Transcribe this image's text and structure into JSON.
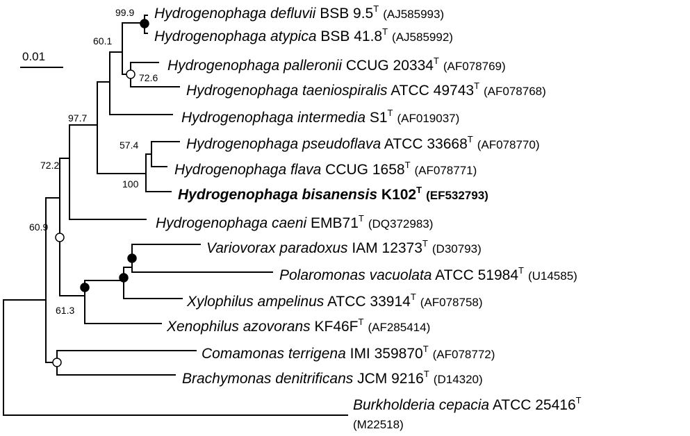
{
  "colors": {
    "line": "#000000",
    "node_filled": "#000000",
    "node_open": "#ffffff"
  },
  "scale_bar": {
    "label": "0.01"
  },
  "taxa": [
    {
      "genus_species": "Hydrogenophaga defluvii",
      "strain": "BSB 9.5",
      "type": "T",
      "accession": "(AJ585993)"
    },
    {
      "genus_species": "Hydrogenophaga atypica",
      "strain": "BSB 41.8",
      "type": "T",
      "accession": "(AJ585992)"
    },
    {
      "genus_species": "Hydrogenophaga palleronii",
      "strain": "CCUG 20334",
      "type": "T",
      "accession": "(AF078769)"
    },
    {
      "genus_species": "Hydrogenophaga taeniospiralis",
      "strain": "ATCC 49743",
      "type": "T",
      "accession": "(AF078768)"
    },
    {
      "genus_species": "Hydrogenophaga intermedia",
      "strain": "S1",
      "type": "T",
      "accession": "(AF019037)"
    },
    {
      "genus_species": "Hydrogenophaga pseudoflava",
      "strain": "ATCC 33668",
      "type": "T",
      "accession": "(AF078770)"
    },
    {
      "genus_species": "Hydrogenophaga flava",
      "strain": "CCUG 1658",
      "type": "T",
      "accession": "(AF078771)"
    },
    {
      "genus_species": "Hydrogenophaga bisanensis",
      "strain": "K102",
      "type": "T",
      "accession": "(EF532793)"
    },
    {
      "genus_species": "Hydrogenophaga caeni",
      "strain": "EMB71",
      "type": "T",
      "accession": "(DQ372983)"
    },
    {
      "genus_species": "Variovorax paradoxus",
      "strain": "IAM 12373",
      "type": "T",
      "accession": "(D30793)"
    },
    {
      "genus_species": "Polaromonas vacuolata",
      "strain": "ATCC 51984",
      "type": "T",
      "accession": "(U14585)"
    },
    {
      "genus_species": "Xylophilus ampelinus",
      "strain": "ATCC 33914",
      "type": "T",
      "accession": "(AF078758)"
    },
    {
      "genus_species": "Xenophilus azovorans",
      "strain": "KF46F",
      "type": "T",
      "accession": "(AF285414)"
    },
    {
      "genus_species": "Comamonas terrigena",
      "strain": "IMI 359870",
      "type": "T",
      "accession": "(AF078772)"
    },
    {
      "genus_species": "Brachymonas denitrificans",
      "strain": "JCM 9216",
      "type": "T",
      "accession": "(D14320)"
    },
    {
      "genus_species": "Burkholderia cepacia",
      "strain": "ATCC 25416",
      "type": "T",
      "accession": "(M22518)"
    }
  ],
  "bootstrap": [
    "99.9",
    "60.1",
    "72.6",
    "97.7",
    "57.4",
    "100",
    "72.2",
    "60.9",
    "61.3"
  ]
}
